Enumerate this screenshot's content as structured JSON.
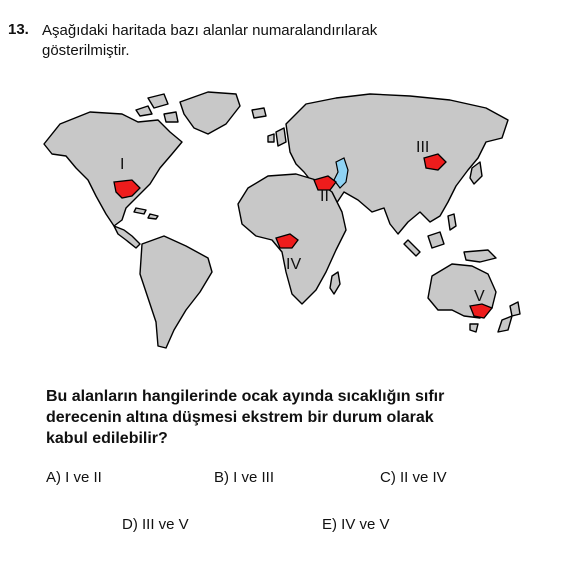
{
  "question": {
    "number": "13.",
    "intro_line1": "Aşağıdaki haritada bazı alanlar numaralandırılarak",
    "intro_line2": "gösterilmiştir.",
    "prompt_line1": "Bu alanların hangilerinde ocak ayında sıcaklığın sıfır",
    "prompt_line2": "derecenin altına düşmesi ekstrem bir durum olarak",
    "prompt_line3": "kabul edilebilir?"
  },
  "map": {
    "labels": {
      "I": "I",
      "II": "II",
      "III": "III",
      "IV": "IV",
      "V": "V"
    },
    "colors": {
      "land": "#c8c8c8",
      "area": "#ee1c1c",
      "water": "#8fd3f4",
      "outline": "#000000"
    }
  },
  "options": [
    {
      "key": "A",
      "text": "A) I ve II"
    },
    {
      "key": "B",
      "text": "B) I ve III"
    },
    {
      "key": "C",
      "text": "C) II ve IV"
    },
    {
      "key": "D",
      "text": "D) III ve V"
    },
    {
      "key": "E",
      "text": "E) IV ve V"
    }
  ]
}
